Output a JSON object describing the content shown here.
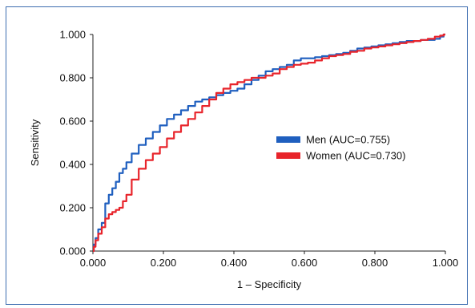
{
  "chart_data": {
    "type": "line",
    "xlabel": "1 – Specificity",
    "ylabel": "Sensitivity",
    "xlim": [
      0,
      1
    ],
    "ylim": [
      0,
      1
    ],
    "x_ticks": [
      "0.000",
      "0.200",
      "0.400",
      "0.600",
      "0.800",
      "1.000"
    ],
    "y_ticks": [
      "0.000",
      "0.200",
      "0.400",
      "0.600",
      "0.800",
      "1.000"
    ],
    "grid": false,
    "legend_position": "center-right",
    "series": [
      {
        "name": "Men (AUC=0.755)",
        "color": "#1f5fbf",
        "x": [
          0.0,
          0.005,
          0.01,
          0.02,
          0.03,
          0.04,
          0.05,
          0.06,
          0.07,
          0.08,
          0.09,
          0.1,
          0.12,
          0.14,
          0.16,
          0.18,
          0.2,
          0.22,
          0.24,
          0.26,
          0.28,
          0.3,
          0.32,
          0.34,
          0.36,
          0.38,
          0.4,
          0.42,
          0.44,
          0.46,
          0.48,
          0.5,
          0.52,
          0.54,
          0.56,
          0.58,
          0.6,
          0.62,
          0.64,
          0.66,
          0.68,
          0.7,
          0.72,
          0.74,
          0.76,
          0.78,
          0.8,
          0.82,
          0.84,
          0.86,
          0.88,
          0.9,
          0.92,
          0.94,
          0.96,
          0.98,
          0.99,
          1.0
        ],
        "y": [
          0.0,
          0.03,
          0.06,
          0.1,
          0.13,
          0.22,
          0.26,
          0.29,
          0.32,
          0.36,
          0.38,
          0.41,
          0.45,
          0.49,
          0.52,
          0.55,
          0.58,
          0.61,
          0.63,
          0.65,
          0.67,
          0.69,
          0.7,
          0.71,
          0.72,
          0.73,
          0.74,
          0.75,
          0.77,
          0.79,
          0.81,
          0.83,
          0.84,
          0.85,
          0.86,
          0.88,
          0.89,
          0.89,
          0.895,
          0.9,
          0.905,
          0.91,
          0.915,
          0.925,
          0.935,
          0.94,
          0.945,
          0.95,
          0.955,
          0.96,
          0.965,
          0.97,
          0.97,
          0.975,
          0.975,
          0.98,
          0.99,
          1.0
        ]
      },
      {
        "name": "Women (AUC=0.730)",
        "color": "#e8242b",
        "x": [
          0.0,
          0.005,
          0.01,
          0.02,
          0.03,
          0.04,
          0.05,
          0.06,
          0.07,
          0.08,
          0.09,
          0.1,
          0.12,
          0.14,
          0.16,
          0.18,
          0.2,
          0.22,
          0.24,
          0.26,
          0.28,
          0.3,
          0.32,
          0.34,
          0.36,
          0.38,
          0.4,
          0.42,
          0.44,
          0.46,
          0.48,
          0.5,
          0.52,
          0.54,
          0.56,
          0.58,
          0.6,
          0.62,
          0.64,
          0.66,
          0.68,
          0.7,
          0.72,
          0.74,
          0.76,
          0.78,
          0.8,
          0.82,
          0.84,
          0.86,
          0.88,
          0.9,
          0.92,
          0.94,
          0.96,
          0.98,
          0.99,
          1.0
        ],
        "y": [
          0.0,
          0.02,
          0.05,
          0.08,
          0.11,
          0.15,
          0.17,
          0.18,
          0.19,
          0.2,
          0.23,
          0.26,
          0.33,
          0.38,
          0.42,
          0.45,
          0.48,
          0.52,
          0.55,
          0.58,
          0.61,
          0.64,
          0.67,
          0.7,
          0.73,
          0.75,
          0.77,
          0.78,
          0.79,
          0.8,
          0.8,
          0.81,
          0.82,
          0.84,
          0.85,
          0.86,
          0.865,
          0.87,
          0.88,
          0.89,
          0.9,
          0.905,
          0.91,
          0.92,
          0.925,
          0.935,
          0.94,
          0.945,
          0.95,
          0.955,
          0.96,
          0.965,
          0.97,
          0.975,
          0.98,
          0.99,
          0.995,
          1.0
        ]
      }
    ]
  }
}
